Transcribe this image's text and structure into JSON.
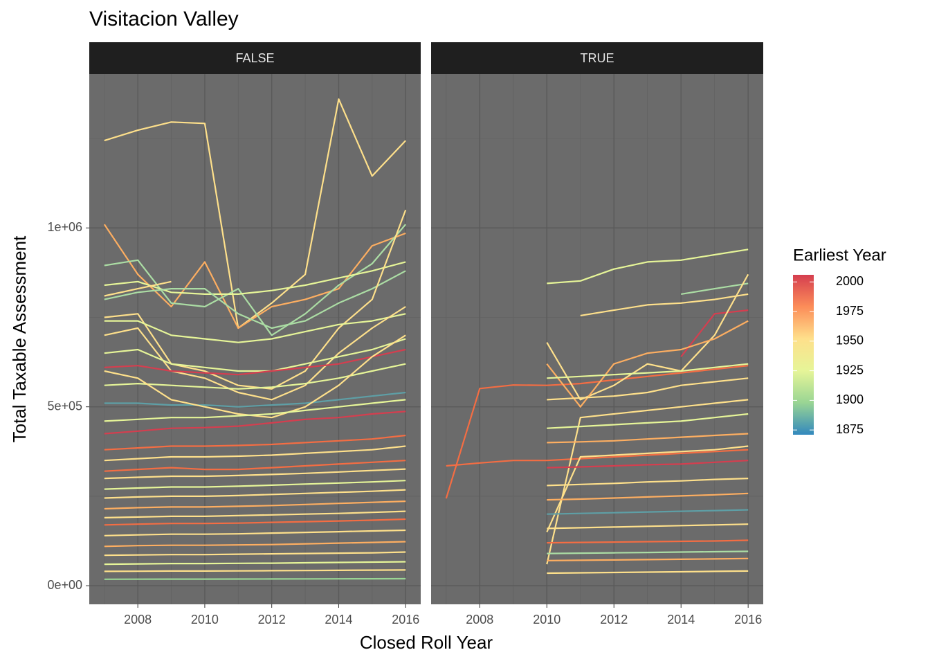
{
  "chart_data": {
    "type": "line",
    "title": "Visitacion Valley",
    "x_label": "Closed Roll Year",
    "y_label": "Total Taxable Assessment",
    "x": [
      2007,
      2008,
      2009,
      2010,
      2011,
      2012,
      2013,
      2014,
      2015,
      2016
    ],
    "xlim": [
      2006.55,
      2016.45
    ],
    "xticks": [
      2008,
      2010,
      2012,
      2014,
      2016
    ],
    "ylim": [
      -52000,
      1430000
    ],
    "yticks": [
      {
        "value": 0,
        "label": "0e+00"
      },
      {
        "value": 500000,
        "label": "5e+05"
      },
      {
        "value": 1000000,
        "label": "1e+06"
      }
    ],
    "grid": true,
    "legend": {
      "title": "Earliest Year",
      "position": "right",
      "lim": [
        1871,
        2006
      ],
      "ticks": [
        1875,
        1900,
        1925,
        1950,
        1975,
        2000
      ],
      "colors": [
        "#3288bd",
        "#99d594",
        "#e6f598",
        "#fee08b",
        "#fc8d59",
        "#d53e4f"
      ]
    },
    "facets": [
      {
        "label": "FALSE",
        "series": [
          {
            "color": "#fee08b",
            "values": [
              1244000,
              1273000,
              1296000,
              1292000,
              720000,
              790000,
              870000,
              1360000,
              1145000,
              1244000
            ]
          },
          {
            "color": "#fdae61",
            "values": [
              1010000,
              870000,
              780000,
              905000,
              720000,
              780000,
              800000,
              830000,
              950000,
              985000
            ]
          },
          {
            "color": "#abdda4",
            "values": [
              895000,
              910000,
              790000,
              780000,
              830000,
              700000,
              760000,
              840000,
              900000,
              1010000
            ]
          },
          {
            "color": "#e6f598",
            "values": [
              840000,
              850000,
              820000,
              815000,
              815000,
              825000,
              840000,
              860000,
              880000,
              905000
            ]
          },
          {
            "color": "#fee08b",
            "values": [
              810000,
              830000,
              850000,
              null,
              null,
              null,
              null,
              null,
              null,
              null
            ]
          },
          {
            "color": "#abdda4",
            "values": [
              800000,
              820000,
              830000,
              830000,
              760000,
              720000,
              740000,
              790000,
              830000,
              880000
            ]
          },
          {
            "color": "#fee08b",
            "values": [
              750000,
              760000,
              620000,
              600000,
              560000,
              550000,
              600000,
              720000,
              800000,
              1050000
            ]
          },
          {
            "color": "#e6f598",
            "values": [
              740000,
              740000,
              700000,
              690000,
              680000,
              690000,
              710000,
              730000,
              740000,
              760000
            ]
          },
          {
            "color": "#fee08b",
            "values": [
              700000,
              720000,
              600000,
              580000,
              540000,
              520000,
              560000,
              650000,
              720000,
              780000
            ]
          },
          {
            "color": "#e6f598",
            "values": [
              650000,
              660000,
              620000,
              610000,
              600000,
              600000,
              620000,
              640000,
              660000,
              690000
            ]
          },
          {
            "color": "#d53e4f",
            "values": [
              610000,
              615000,
              600000,
              595000,
              590000,
              600000,
              610000,
              620000,
              640000,
              660000
            ]
          },
          {
            "color": "#e6f598",
            "values": [
              560000,
              565000,
              560000,
              555000,
              550000,
              555000,
              565000,
              580000,
              600000,
              620000
            ]
          },
          {
            "color": "#5e9fa6",
            "values": [
              510000,
              510000,
              505000,
              505000,
              500000,
              505000,
              510000,
              520000,
              530000,
              540000
            ]
          },
          {
            "color": "#fee08b",
            "values": [
              600000,
              580000,
              520000,
              500000,
              480000,
              470000,
              500000,
              560000,
              640000,
              700000
            ]
          },
          {
            "color": "#d53e4f",
            "values": [
              425000,
              432000,
              440000,
              442000,
              446000,
              455000,
              465000,
              470000,
              480000,
              487000
            ]
          },
          {
            "color": "#e6f598",
            "values": [
              460000,
              465000,
              470000,
              470000,
              475000,
              480000,
              490000,
              500000,
              510000,
              520000
            ]
          },
          {
            "color": "#f46d43",
            "values": [
              380000,
              385000,
              390000,
              390000,
              392000,
              395000,
              400000,
              405000,
              410000,
              420000
            ]
          },
          {
            "color": "#fee08b",
            "values": [
              350000,
              355000,
              360000,
              360000,
              362000,
              365000,
              370000,
              375000,
              380000,
              390000
            ]
          },
          {
            "color": "#f46d43",
            "values": [
              320000,
              325000,
              330000,
              325000,
              325000,
              330000,
              335000,
              340000,
              345000,
              350000
            ]
          },
          {
            "color": "#fee08b",
            "values": [
              300000,
              303000,
              306000,
              306000,
              308000,
              311000,
              314000,
              318000,
              322000,
              326000
            ]
          },
          {
            "color": "#e6f598",
            "values": [
              270000,
              273000,
              276000,
              276000,
              278000,
              281000,
              284000,
              287000,
              290000,
              294000
            ]
          },
          {
            "color": "#fee08b",
            "values": [
              245000,
              248000,
              250000,
              250000,
              252000,
              255000,
              258000,
              261000,
              264000,
              268000
            ]
          },
          {
            "color": "#fdae61",
            "values": [
              215000,
              218000,
              220000,
              220000,
              222000,
              224000,
              227000,
              230000,
              233000,
              236000
            ]
          },
          {
            "color": "#fee08b",
            "values": [
              190000,
              192000,
              194000,
              194000,
              196000,
              198000,
              200000,
              202000,
              205000,
              208000
            ]
          },
          {
            "color": "#f46d43",
            "values": [
              170000,
              172000,
              174000,
              174000,
              175000,
              177000,
              179000,
              181000,
              183000,
              186000
            ]
          },
          {
            "color": "#fee08b",
            "values": [
              140000,
              142000,
              144000,
              144000,
              145000,
              147000,
              149000,
              151000,
              153000,
              155000
            ]
          },
          {
            "color": "#fdae61",
            "values": [
              110000,
              112000,
              113000,
              113000,
              114000,
              115000,
              117000,
              119000,
              121000,
              123000
            ]
          },
          {
            "color": "#fee08b",
            "values": [
              85000,
              86000,
              87000,
              87000,
              88000,
              89000,
              90000,
              91000,
              92000,
              94000
            ]
          },
          {
            "color": "#e6f598",
            "values": [
              60000,
              61000,
              62000,
              62000,
              62500,
              63000,
              64000,
              65000,
              66000,
              67000
            ]
          },
          {
            "color": "#fee08b",
            "values": [
              40000,
              40500,
              41000,
              41000,
              41500,
              42000,
              42500,
              43000,
              43500,
              44000
            ]
          },
          {
            "color": "#99d594",
            "values": [
              18000,
              18200,
              18400,
              18400,
              18600,
              18800,
              19000,
              19200,
              19400,
              19600
            ]
          }
        ]
      },
      {
        "label": "TRUE",
        "series": [
          {
            "color": "#f46d43",
            "values": [
              244000,
              551000,
              561000,
              560000,
              565000,
              575000,
              585000,
              595000,
              605000,
              615000
            ]
          },
          {
            "color": "#f46d43",
            "values": [
              335000,
              343000,
              350000,
              350000,
              355000,
              360000,
              365000,
              370000,
              375000,
              380000
            ]
          },
          {
            "color": "#e6f598",
            "values": [
              null,
              null,
              null,
              845000,
              852000,
              885000,
              905000,
              910000,
              925000,
              940000
            ]
          },
          {
            "color": "#fee08b",
            "values": [
              null,
              null,
              null,
              null,
              755000,
              770000,
              785000,
              790000,
              800000,
              815000
            ]
          },
          {
            "color": "#abdda4",
            "values": [
              null,
              null,
              null,
              null,
              null,
              null,
              null,
              815000,
              830000,
              845000
            ]
          },
          {
            "color": "#d53e4f",
            "values": [
              null,
              null,
              null,
              null,
              null,
              null,
              null,
              640000,
              760000,
              770000
            ]
          },
          {
            "color": "#fee08b",
            "values": [
              null,
              null,
              null,
              680000,
              520000,
              560000,
              620000,
              600000,
              700000,
              870000
            ]
          },
          {
            "color": "#fdae61",
            "values": [
              null,
              null,
              null,
              620000,
              500000,
              620000,
              650000,
              660000,
              690000,
              740000
            ]
          },
          {
            "color": "#e6f598",
            "values": [
              null,
              null,
              null,
              580000,
              585000,
              590000,
              595000,
              600000,
              610000,
              620000
            ]
          },
          {
            "color": "#fee08b",
            "values": [
              null,
              null,
              null,
              520000,
              525000,
              530000,
              540000,
              560000,
              570000,
              580000
            ]
          },
          {
            "color": "#fee08b",
            "values": [
              null,
              null,
              null,
              60000,
              470000,
              480000,
              490000,
              500000,
              510000,
              520000
            ]
          },
          {
            "color": "#e6f598",
            "values": [
              null,
              null,
              null,
              440000,
              445000,
              450000,
              455000,
              460000,
              470000,
              480000
            ]
          },
          {
            "color": "#fdae61",
            "values": [
              null,
              null,
              null,
              400000,
              402000,
              405000,
              410000,
              415000,
              420000,
              425000
            ]
          },
          {
            "color": "#fee08b",
            "values": [
              null,
              null,
              null,
              150000,
              360000,
              365000,
              370000,
              375000,
              380000,
              390000
            ]
          },
          {
            "color": "#d53e4f",
            "values": [
              null,
              null,
              null,
              330000,
              332000,
              335000,
              338000,
              340000,
              345000,
              350000
            ]
          },
          {
            "color": "#fee08b",
            "values": [
              null,
              null,
              null,
              280000,
              283000,
              286000,
              290000,
              293000,
              297000,
              300000
            ]
          },
          {
            "color": "#fdae61",
            "values": [
              null,
              null,
              null,
              240000,
              242000,
              245000,
              248000,
              251000,
              254000,
              258000
            ]
          },
          {
            "color": "#5e9fa6",
            "values": [
              null,
              null,
              null,
              200000,
              202000,
              204000,
              206000,
              208000,
              210000,
              212000
            ]
          },
          {
            "color": "#fee08b",
            "values": [
              null,
              null,
              null,
              160000,
              162000,
              164000,
              166000,
              168000,
              170000,
              172000
            ]
          },
          {
            "color": "#f46d43",
            "values": [
              null,
              null,
              null,
              120000,
              121000,
              122000,
              123000,
              124000,
              125000,
              127000
            ]
          },
          {
            "color": "#abdda4",
            "values": [
              null,
              null,
              null,
              90000,
              91000,
              92000,
              93000,
              94000,
              95000,
              96000
            ]
          },
          {
            "color": "#fdae61",
            "values": [
              null,
              null,
              null,
              70000,
              71000,
              72000,
              73000,
              74000,
              75000,
              76000
            ]
          },
          {
            "color": "#fee08b",
            "values": [
              null,
              null,
              null,
              35000,
              36000,
              37000,
              38000,
              39000,
              40000,
              41000
            ]
          }
        ]
      }
    ]
  }
}
